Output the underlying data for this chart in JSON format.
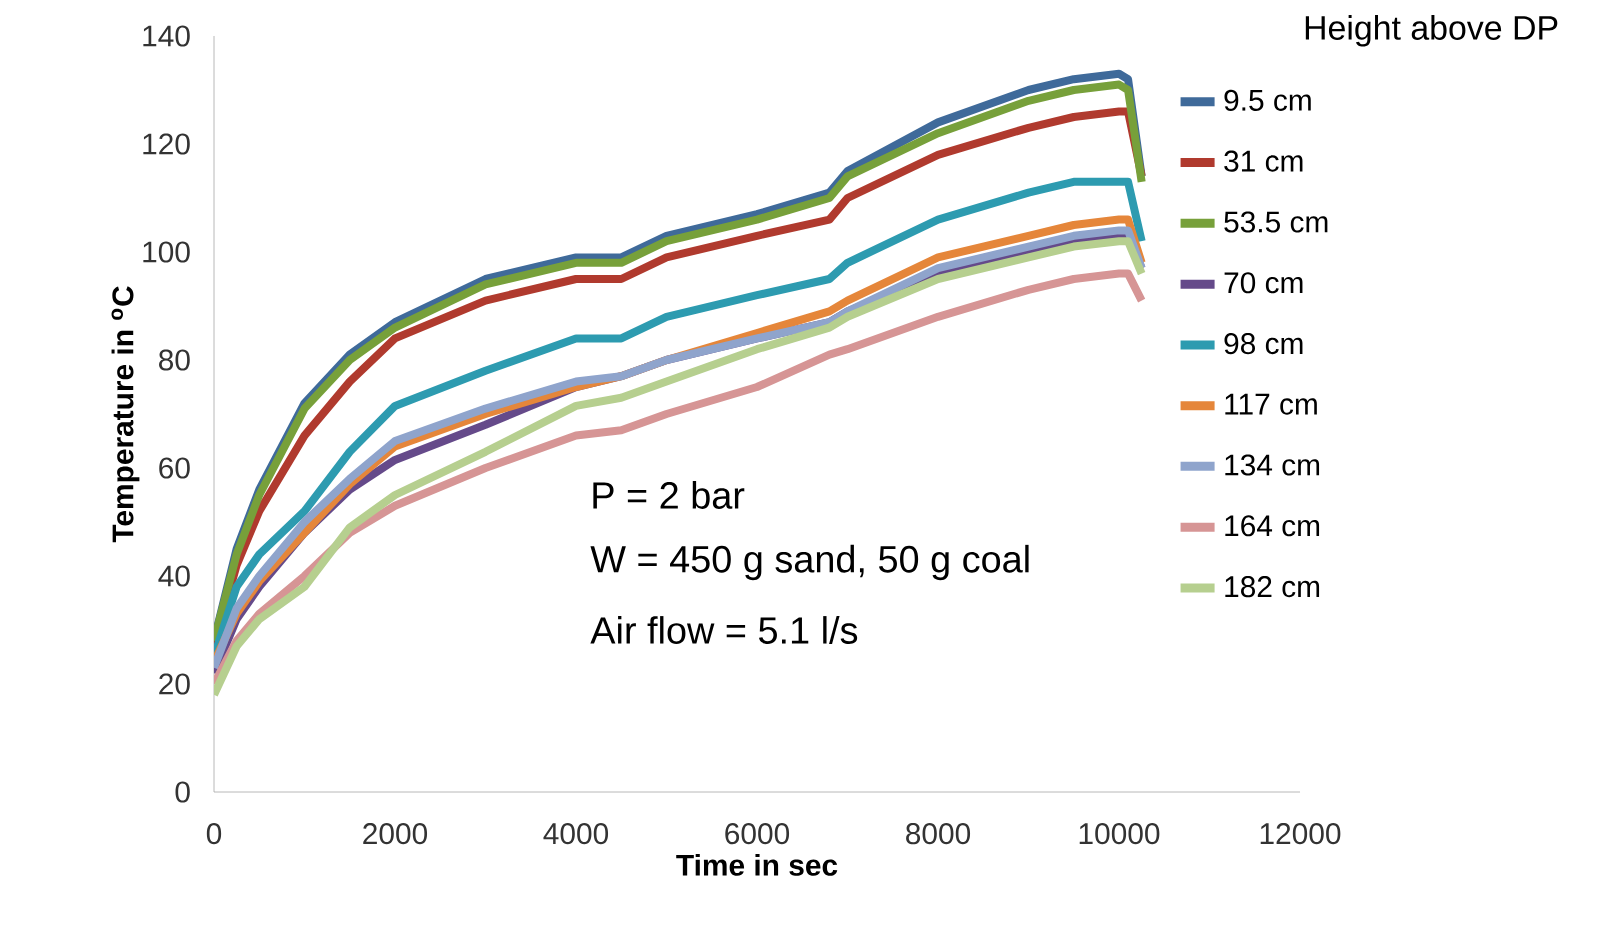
{
  "chart_data": {
    "type": "line",
    "xlabel": "Time in sec",
    "ylabel": "Temperature in $^{o}$C",
    "legend_title": "Height above DP",
    "x": [
      0,
      250,
      500,
      1000,
      1500,
      2000,
      3000,
      4000,
      4500,
      5000,
      6000,
      6800,
      7000,
      8000,
      9000,
      9500,
      10000,
      10100,
      10250
    ],
    "series": [
      {
        "name": "9.5 cm",
        "color": "#3f6a9a",
        "values": [
          28,
          45,
          56,
          72,
          81,
          87,
          95,
          99,
          99,
          103,
          107,
          111,
          115,
          124,
          130,
          132,
          133,
          132,
          114
        ]
      },
      {
        "name": "31 cm",
        "color": "#b03a2e",
        "values": [
          27,
          42,
          52,
          66,
          76,
          84,
          91,
          95,
          95,
          99,
          103,
          106,
          110,
          118,
          123,
          125,
          126,
          126,
          114
        ]
      },
      {
        "name": "53.5 cm",
        "color": "#77a03a",
        "values": [
          28,
          44,
          55,
          71,
          80,
          86,
          94,
          98,
          98,
          102,
          106,
          110,
          114,
          122,
          128,
          130,
          131,
          130,
          113
        ]
      },
      {
        "name": "70 cm",
        "color": "#654a8a",
        "values": [
          22,
          32,
          38,
          48,
          56,
          61.5,
          68,
          75,
          77,
          80,
          84,
          87,
          89,
          96,
          100,
          102,
          103,
          103,
          97
        ]
      },
      {
        "name": "98 cm",
        "color": "#2d9bb0",
        "values": [
          25,
          38,
          44,
          52,
          63,
          71.5,
          78,
          84,
          84,
          88,
          92,
          95,
          98,
          106,
          111,
          113,
          113,
          113,
          102
        ]
      },
      {
        "name": "117 cm",
        "color": "#e5863a",
        "values": [
          24,
          33,
          39,
          48,
          57,
          64,
          70,
          75,
          77,
          80,
          85,
          89,
          91,
          99,
          103,
          105,
          106,
          106,
          98
        ]
      },
      {
        "name": "134 cm",
        "color": "#8fa4cc",
        "values": [
          23,
          34,
          40,
          50,
          58,
          65,
          71,
          76,
          77,
          80,
          84,
          87,
          89,
          97,
          101,
          103,
          104,
          104,
          97
        ]
      },
      {
        "name": "164 cm",
        "color": "#d69595",
        "values": [
          20,
          28,
          33,
          40,
          48,
          53,
          60,
          66,
          67,
          70,
          75,
          81,
          82,
          88,
          93,
          95,
          96,
          96,
          91
        ]
      },
      {
        "name": "182 cm",
        "color": "#b6cf8f",
        "values": [
          18,
          27,
          32,
          38,
          49,
          55,
          63,
          71.5,
          73,
          76,
          82,
          86,
          88,
          95,
          99,
          101,
          102,
          102,
          96
        ]
      }
    ],
    "xlim": [
      0,
      12000
    ],
    "xticks": [
      0,
      2000,
      4000,
      6000,
      8000,
      10000,
      12000
    ],
    "ylim": [
      0,
      140
    ],
    "yticks": [
      0,
      20,
      40,
      60,
      80,
      100,
      120,
      140
    ],
    "grid": false,
    "legend": "right",
    "marker": "none",
    "line_style": "solid",
    "annotations": [
      {
        "text": "P = 2 bar"
      },
      {
        "text": "W = 450 g sand, 50 g coal"
      },
      {
        "text": "Air flow = 5.1 l/s"
      }
    ]
  }
}
